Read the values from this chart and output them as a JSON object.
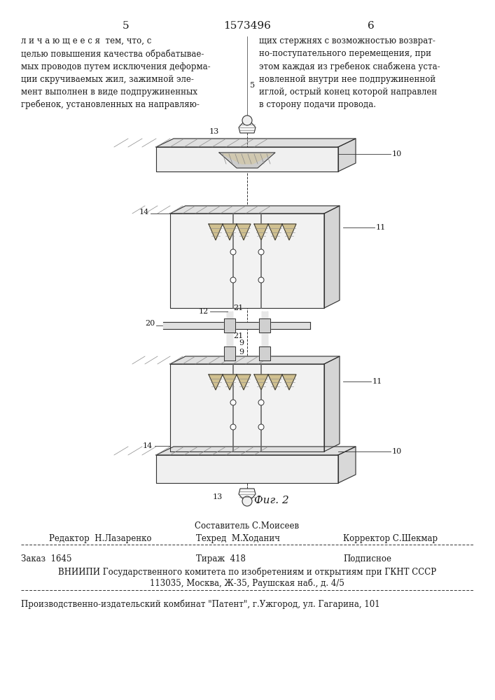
{
  "page_number_left": "5",
  "page_number_right": "6",
  "patent_number": "1573496",
  "text_left": "л и ч а ю щ е е с я  тем, что, с\nцелью повышения качества обрабатывае-\nмых проводов путем исключения деформации скручиваемых жил, зажимной эле-\nмент выполнен в виде подпружиненных\nгребенок, установленных на направляю-",
  "text_right": "щих стержнях с возможностью возврат-\nно-поступательного перемещения, при\nэтом каждая из гребенок снабжена уста-\nновленной внутри нее подпружиненной\nиглой, острый конец которой направлен\nв сторону подачи провода.",
  "fig_caption": "Фиг. 2",
  "author_line": "Составитель С.Моисеев",
  "editor": "Редактор  Н.Лазаренко",
  "techred": "Техред  М.Ходанич",
  "corrector": "Корректор С.Шекмар",
  "order": "Заказ  1645",
  "circulation": "Тираж  418",
  "subscription": "Подписное",
  "vniиpi_line1": "ВНИИПИ Государственного комитета по изобретениям и открытиям при ГКНТ СССР",
  "vniиpi_line2": "113035, Москва, Ж-35, Раушская наб., д. 4/5",
  "publisher": "Производственно-издательский комбинат \"Патент\", г.Ужгород, ул. Гагарина, 101",
  "bg_color": "#ffffff",
  "text_color": "#1a1a1a",
  "line_color": "#333333"
}
